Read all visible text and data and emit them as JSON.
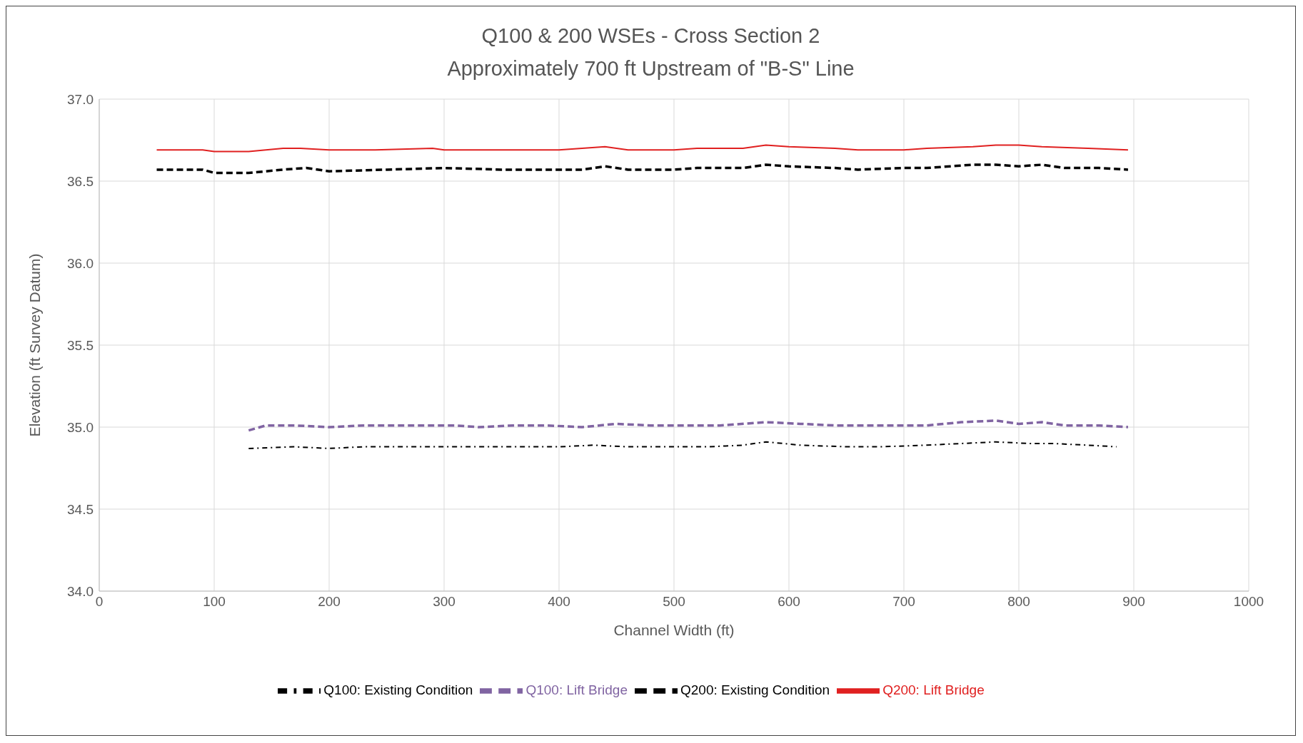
{
  "chart_data": {
    "type": "line",
    "title": "Q100 & 200 WSEs - Cross Section 2",
    "subtitle": "Approximately 700 ft Upstream of \"B-S\" Line",
    "xlabel": "Channel Width (ft)",
    "ylabel": "Elevation (ft Survey Datum)",
    "xlim": [
      0,
      1000
    ],
    "xticks": [
      0,
      100,
      200,
      300,
      400,
      500,
      600,
      700,
      800,
      900,
      1000
    ],
    "ylim": [
      34.0,
      37.0
    ],
    "yticks": [
      {
        "value": 34.0,
        "label": "34.0"
      },
      {
        "value": 34.5,
        "label": "34.5"
      },
      {
        "value": 35.0,
        "label": "35.0"
      },
      {
        "value": 35.5,
        "label": "35.5"
      },
      {
        "value": 36.0,
        "label": "36.0"
      },
      {
        "value": 36.5,
        "label": "36.5"
      },
      {
        "value": 37.0,
        "label": "37.0"
      }
    ],
    "grid": true,
    "legend": "bottom",
    "marker": "none",
    "series": [
      {
        "name": "Q200: Existing Condition",
        "color": "#000000",
        "line_style": "dashed",
        "x": [
          50,
          90,
          100,
          130,
          160,
          180,
          200,
          250,
          300,
          350,
          400,
          420,
          440,
          460,
          500,
          520,
          560,
          580,
          600,
          640,
          660,
          700,
          720,
          760,
          780,
          800,
          820,
          840,
          870,
          895
        ],
        "values": [
          36.57,
          36.57,
          36.55,
          36.55,
          36.57,
          36.58,
          36.56,
          36.57,
          36.58,
          36.57,
          36.57,
          36.57,
          36.59,
          36.57,
          36.57,
          36.58,
          36.58,
          36.6,
          36.59,
          36.58,
          36.57,
          36.58,
          36.58,
          36.6,
          36.6,
          36.59,
          36.6,
          36.58,
          36.58,
          36.57
        ]
      },
      {
        "name": "Q200: Lift Bridge",
        "color": "#e02020",
        "line_style": "solid",
        "x": [
          50,
          90,
          100,
          130,
          160,
          175,
          200,
          240,
          290,
          300,
          350,
          400,
          420,
          440,
          460,
          500,
          520,
          560,
          580,
          600,
          640,
          660,
          700,
          720,
          760,
          780,
          800,
          820,
          860,
          895
        ],
        "values": [
          36.69,
          36.69,
          36.68,
          36.68,
          36.7,
          36.7,
          36.69,
          36.69,
          36.7,
          36.69,
          36.69,
          36.69,
          36.7,
          36.71,
          36.69,
          36.69,
          36.7,
          36.7,
          36.72,
          36.71,
          36.7,
          36.69,
          36.69,
          36.7,
          36.71,
          36.72,
          36.72,
          36.71,
          36.7,
          36.69
        ]
      },
      {
        "name": "Q100: Existing Condition",
        "color": "#000000",
        "line_style": "dotted",
        "x": [
          130,
          170,
          200,
          230,
          270,
          300,
          330,
          360,
          400,
          430,
          460,
          500,
          530,
          560,
          580,
          610,
          650,
          680,
          720,
          750,
          780,
          810,
          830,
          860,
          885
        ],
        "values": [
          34.87,
          34.88,
          34.87,
          34.88,
          34.88,
          34.88,
          34.88,
          34.88,
          34.88,
          34.89,
          34.88,
          34.88,
          34.88,
          34.89,
          34.91,
          34.89,
          34.88,
          34.88,
          34.89,
          34.9,
          34.91,
          34.9,
          34.9,
          34.89,
          34.88
        ]
      },
      {
        "name": "Q100: Lift Bridge",
        "color": "#8064a2",
        "line_style": "dashed",
        "x": [
          130,
          145,
          170,
          200,
          230,
          260,
          290,
          310,
          330,
          360,
          390,
          420,
          450,
          480,
          510,
          540,
          580,
          610,
          640,
          670,
          700,
          720,
          750,
          780,
          800,
          820,
          840,
          870,
          895
        ],
        "values": [
          34.98,
          35.01,
          35.01,
          35.0,
          35.01,
          35.01,
          35.01,
          35.01,
          35.0,
          35.01,
          35.01,
          35.0,
          35.02,
          35.01,
          35.01,
          35.01,
          35.03,
          35.02,
          35.01,
          35.01,
          35.01,
          35.01,
          35.03,
          35.04,
          35.02,
          35.03,
          35.01,
          35.01,
          35.0
        ]
      }
    ]
  }
}
